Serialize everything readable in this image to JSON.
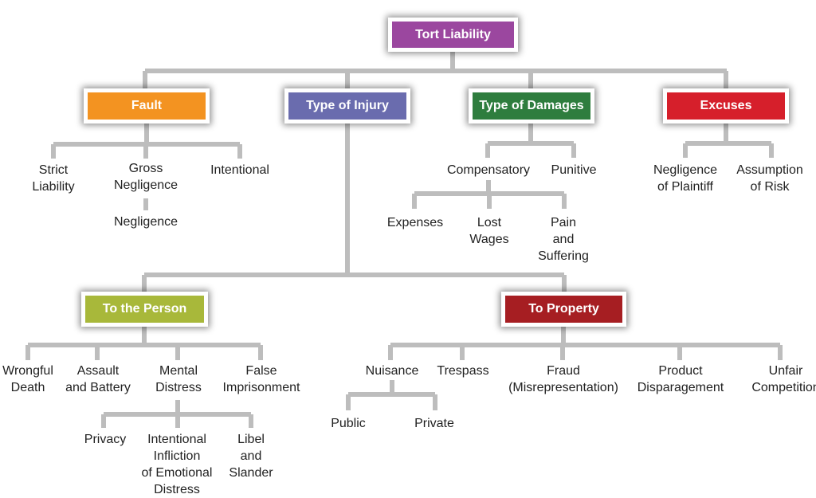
{
  "colors": {
    "connector": "#bdbdbd",
    "tort_liability": "#9b479f",
    "fault": "#f39321",
    "type_of_injury": "#6a6cae",
    "type_of_damages": "#2e7d3e",
    "excuses": "#d61f2b",
    "to_the_person": "#a8b83a",
    "to_property": "#a61e22"
  },
  "root": {
    "label": "Tort Liability"
  },
  "categories": {
    "fault": {
      "label": "Fault",
      "children": [
        "Strict\nLiability",
        "Gross\nNegligence",
        "Intentional"
      ],
      "sub": "Negligence"
    },
    "type_of_injury": {
      "label": "Type of Injury"
    },
    "type_of_damages": {
      "label": "Type of Damages",
      "children": [
        "Compensatory",
        "Punitive"
      ],
      "compensatory_children": [
        "Expenses",
        "Lost\nWages",
        "Pain\nand\nSuffering"
      ]
    },
    "excuses": {
      "label": "Excuses",
      "children": [
        "Negligence\nof Plaintiff",
        "Assumption\nof Risk"
      ]
    }
  },
  "injury": {
    "to_the_person": {
      "label": "To the Person",
      "children": [
        "Wrongful\nDeath",
        "Assault\nand Battery",
        "Mental\nDistress",
        "False\nImprisonment"
      ],
      "mental_distress_children": [
        "Privacy",
        "Intentional\nInfliction\nof Emotional\nDistress",
        "Libel\nand\nSlander"
      ]
    },
    "to_property": {
      "label": "To Property",
      "children": [
        "Nuisance",
        "Trespass",
        "Fraud\n(Misrepresentation)",
        "Product\nDisparagement",
        "Unfair\nCompetition"
      ],
      "nuisance_children": [
        "Public",
        "Private"
      ]
    }
  }
}
